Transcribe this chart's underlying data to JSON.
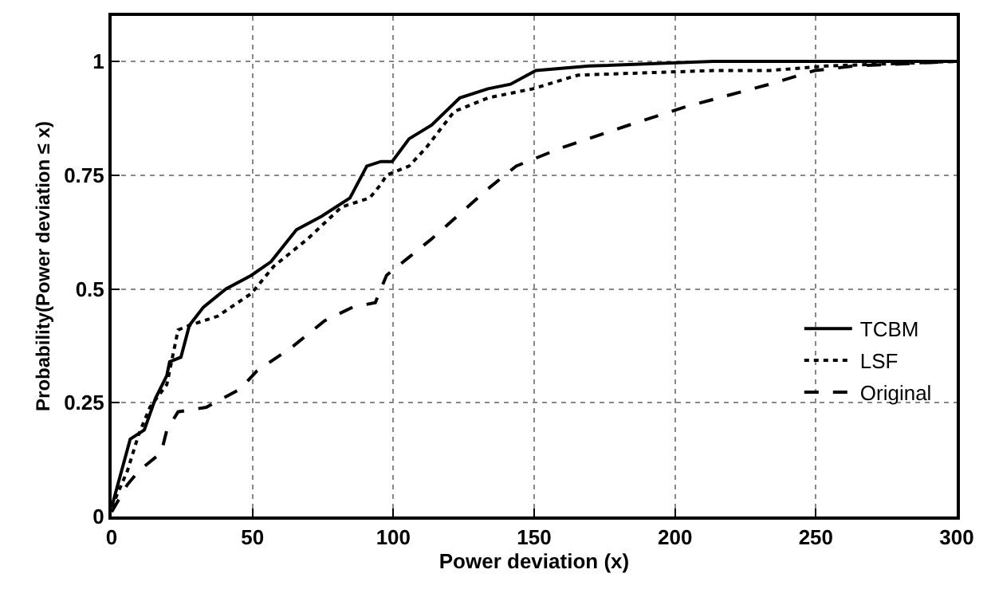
{
  "chart_data": {
    "type": "line",
    "xlabel": "Power deviation (x)",
    "ylabel": "Probability(Power deviation ≤ x)",
    "xlim": [
      0,
      300
    ],
    "xticks": [
      0,
      50,
      100,
      150,
      200,
      250,
      300
    ],
    "ylim": [
      0,
      1.1
    ],
    "yticks": [
      0,
      0.25,
      0.5,
      0.75,
      1
    ],
    "grid": true,
    "legend": "bottom right",
    "marker": "none",
    "series": [
      {
        "name": "TCBM",
        "color": "#000000",
        "line_style": "solid",
        "x": [
          0,
          6.6,
          11.6,
          15.6,
          19.6,
          20.6,
          24.6,
          27.6,
          32.6,
          40.6,
          49.6,
          56.6,
          65.6,
          74.6,
          84.6,
          90.6,
          95.6,
          99.6,
          105.6,
          113.6,
          123.6,
          133.6,
          141.6,
          150.6,
          169.6,
          213.6,
          300
        ],
        "values": [
          0.02,
          0.17,
          0.19,
          0.26,
          0.31,
          0.34,
          0.35,
          0.42,
          0.46,
          0.5,
          0.53,
          0.56,
          0.63,
          0.66,
          0.7,
          0.77,
          0.78,
          0.78,
          0.83,
          0.86,
          0.92,
          0.94,
          0.95,
          0.98,
          0.99,
          1.0,
          1.0
        ]
      },
      {
        "name": "LSF",
        "color": "#000000",
        "line_style": "dotted",
        "x": [
          0,
          5.6,
          9.6,
          13.6,
          19.6,
          23.6,
          27.6,
          37.6,
          49.6,
          57.6,
          69.6,
          81.6,
          91.6,
          95.6,
          97.6,
          105.6,
          111.6,
          121.6,
          133.6,
          149.6,
          165.6,
          213.6,
          233.6,
          253.6,
          299.4
        ],
        "values": [
          0.02,
          0.1,
          0.18,
          0.24,
          0.29,
          0.41,
          0.42,
          0.44,
          0.49,
          0.55,
          0.61,
          0.68,
          0.7,
          0.73,
          0.75,
          0.77,
          0.81,
          0.89,
          0.92,
          0.94,
          0.97,
          0.98,
          0.98,
          0.99,
          1.0
        ]
      },
      {
        "name": "Original",
        "color": "#000000",
        "line_style": "dashed",
        "x": [
          0,
          5.6,
          9.6,
          17.6,
          19.6,
          23.6,
          33.6,
          45.6,
          51.6,
          63.6,
          75.6,
          85.6,
          93.6,
          97.6,
          99.6,
          105.6,
          113.6,
          133.6,
          143.6,
          159.6,
          183.6,
          203.6,
          233.6,
          249.6,
          263.6,
          299.4
        ],
        "values": [
          0.01,
          0.07,
          0.1,
          0.14,
          0.19,
          0.23,
          0.24,
          0.28,
          0.32,
          0.37,
          0.43,
          0.46,
          0.47,
          0.53,
          0.54,
          0.57,
          0.61,
          0.72,
          0.77,
          0.81,
          0.86,
          0.9,
          0.95,
          0.98,
          0.99,
          1.0
        ]
      }
    ]
  }
}
